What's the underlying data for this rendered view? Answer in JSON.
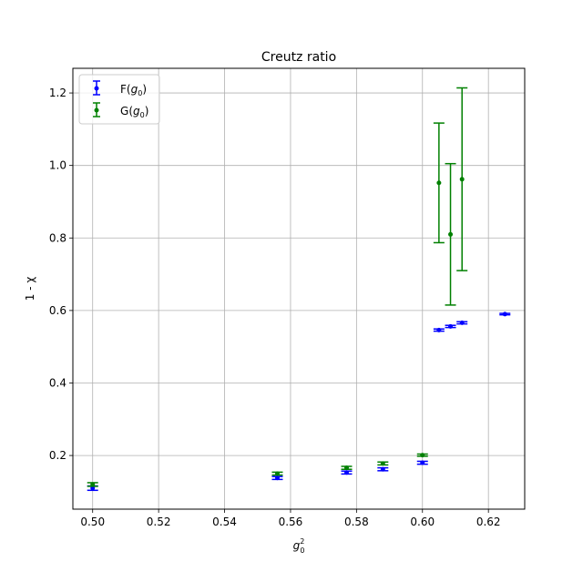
{
  "chart_data": {
    "type": "scatter",
    "title": "Creutz ratio",
    "xlabel": "g",
    "xlabel_sub": "0",
    "xlabel_sup": "2",
    "ylabel": "1 - χ",
    "xlim": [
      0.494,
      0.631
    ],
    "ylim": [
      0.052,
      1.268
    ],
    "xticks": [
      {
        "value": 0.5,
        "label": "0.50"
      },
      {
        "value": 0.52,
        "label": "0.52"
      },
      {
        "value": 0.54,
        "label": "0.54"
      },
      {
        "value": 0.56,
        "label": "0.56"
      },
      {
        "value": 0.58,
        "label": "0.58"
      },
      {
        "value": 0.6,
        "label": "0.60"
      },
      {
        "value": 0.62,
        "label": "0.62"
      }
    ],
    "yticks": [
      {
        "value": 0.2,
        "label": "0.2"
      },
      {
        "value": 0.4,
        "label": "0.4"
      },
      {
        "value": 0.6,
        "label": "0.6"
      },
      {
        "value": 0.8,
        "label": "0.8"
      },
      {
        "value": 1.0,
        "label": "1.0"
      },
      {
        "value": 1.2,
        "label": "1.2"
      }
    ],
    "grid": true,
    "legend_position": "top-left",
    "series": [
      {
        "name": "F",
        "name_sub": "0",
        "color": "#0000ff",
        "points": [
          {
            "x": 0.5,
            "y": 0.11,
            "err": 0.006
          },
          {
            "x": 0.556,
            "y": 0.138,
            "err": 0.004
          },
          {
            "x": 0.577,
            "y": 0.153,
            "err": 0.004
          },
          {
            "x": 0.588,
            "y": 0.162,
            "err": 0.004
          },
          {
            "x": 0.6,
            "y": 0.18,
            "err": 0.004
          },
          {
            "x": 0.605,
            "y": 0.546,
            "err": 0.003
          },
          {
            "x": 0.6085,
            "y": 0.556,
            "err": 0.003
          },
          {
            "x": 0.612,
            "y": 0.566,
            "err": 0.003
          },
          {
            "x": 0.625,
            "y": 0.59,
            "err": 0.002
          }
        ]
      },
      {
        "name": "G",
        "name_sub": "0",
        "color": "#008000",
        "points": [
          {
            "x": 0.5,
            "y": 0.12,
            "err": 0.005
          },
          {
            "x": 0.556,
            "y": 0.15,
            "err": 0.004
          },
          {
            "x": 0.577,
            "y": 0.166,
            "err": 0.004
          },
          {
            "x": 0.588,
            "y": 0.178,
            "err": 0.004
          },
          {
            "x": 0.6,
            "y": 0.201,
            "err": 0.003
          },
          {
            "x": 0.605,
            "y": 0.952,
            "err": 0.165
          },
          {
            "x": 0.6085,
            "y": 0.81,
            "err": 0.195
          },
          {
            "x": 0.612,
            "y": 0.962,
            "err": 0.252
          }
        ]
      }
    ]
  }
}
